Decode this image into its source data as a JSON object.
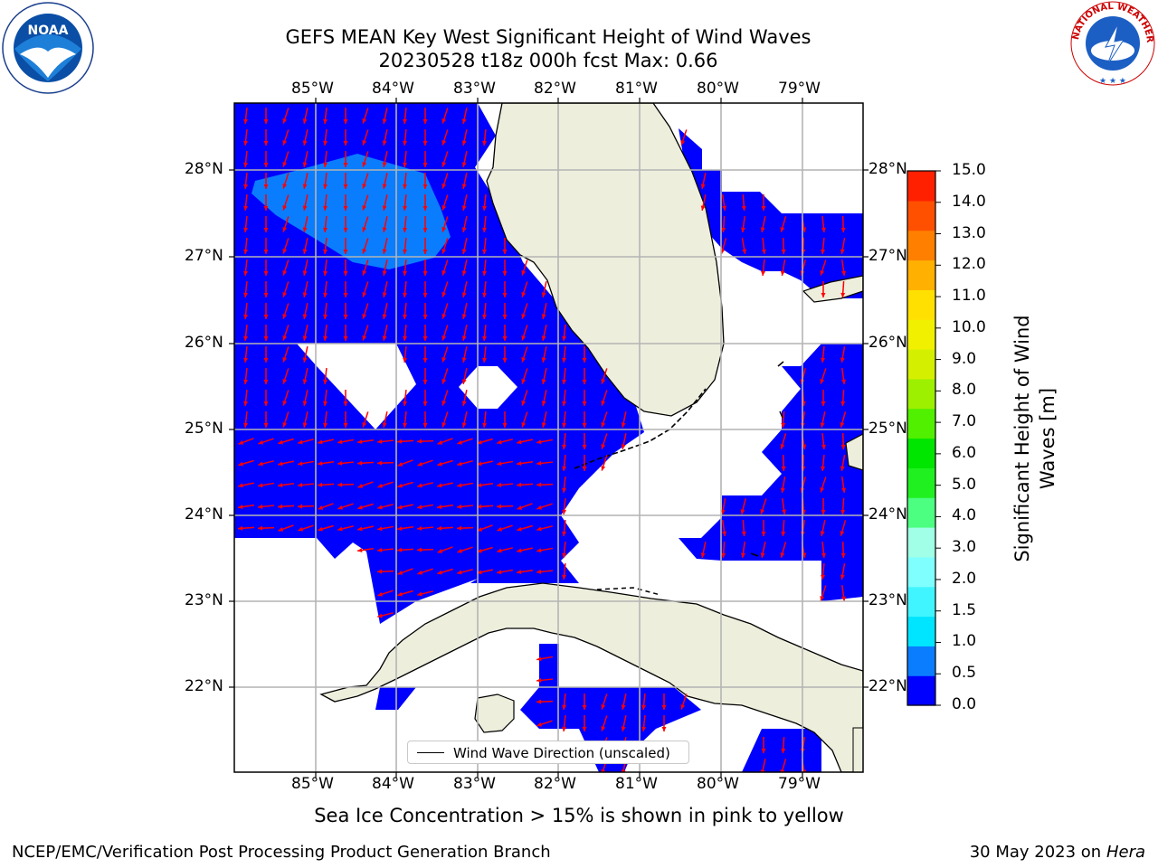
{
  "title": {
    "line1": "GEFS MEAN Key West Significant Height of Wind Waves",
    "line2": "20230528 t18z 000h fcst   Max: 0.66"
  },
  "map": {
    "lon_labels": [
      "85°W",
      "84°W",
      "83°W",
      "82°W",
      "81°W",
      "80°W",
      "79°W"
    ],
    "lat_labels": [
      "28°N",
      "27°N",
      "26°N",
      "25°N",
      "24°N",
      "23°N",
      "22°N"
    ],
    "colors": {
      "land": "#eeeedd",
      "ocean_low": "#0000ff",
      "ocean_mid": "#0a7dff",
      "arrow": "#ff0000",
      "grid": "#b4b4b4"
    },
    "legend_label": "Wind Wave Direction (unscaled)"
  },
  "colorbar": {
    "label": "Significant Height of Wind Waves [m]",
    "ticks": [
      "0.0",
      "0.5",
      "1.0",
      "1.5",
      "2.0",
      "3.0",
      "4.0",
      "5.0",
      "6.0",
      "7.0",
      "8.0",
      "9.0",
      "10.0",
      "11.0",
      "12.0",
      "13.0",
      "14.0",
      "15.0"
    ],
    "colors": [
      "#0000ff",
      "#0a7dff",
      "#00e5ff",
      "#40f5ff",
      "#80ffff",
      "#a0ffe6",
      "#4cff80",
      "#20f020",
      "#00e600",
      "#50f000",
      "#9cf000",
      "#d4f000",
      "#f0f000",
      "#ffe000",
      "#ffb000",
      "#ff8000",
      "#ff5000",
      "#ff2000"
    ]
  },
  "caption": "Sea Ice Concentration > 15% is shown in pink to yellow",
  "footer": {
    "left": "NCEP/EMC/Verification Post Processing Product Generation Branch",
    "right_date": "30 May 2023 on",
    "right_host": "Hera"
  },
  "logos": {
    "noaa": "NOAA",
    "nws": "NATIONAL WEATHER SERVICE"
  }
}
